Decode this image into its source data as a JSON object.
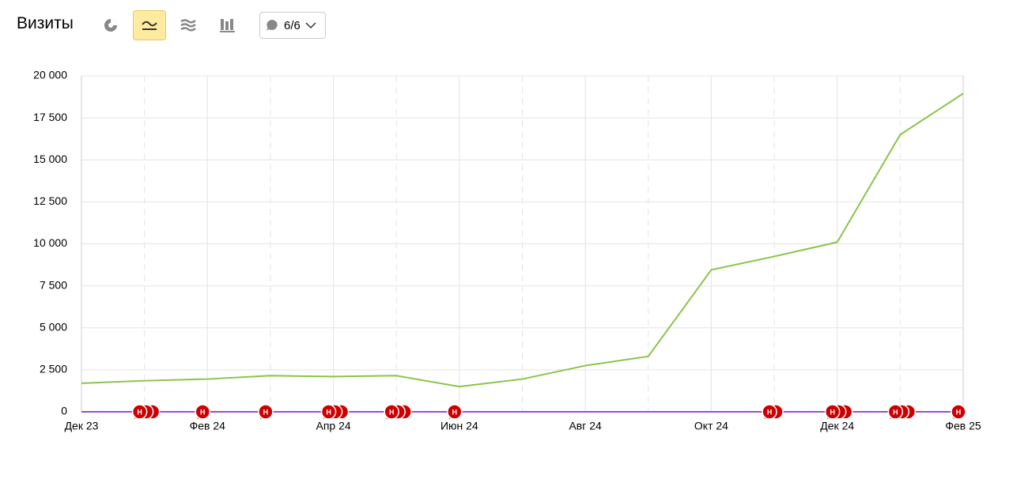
{
  "header": {
    "title": "Визиты",
    "comments": "6/6"
  },
  "chart_data": {
    "type": "line",
    "categories": [
      "Дек 23",
      null,
      "Фев 24",
      null,
      "Апр 24",
      null,
      "Июн 24",
      null,
      "Авг 24",
      null,
      "Окт 24",
      null,
      "Дек 24",
      null,
      "Фев 25"
    ],
    "series": [
      {
        "color": "#8bc34a",
        "values": [
          1700,
          1850,
          1950,
          2150,
          2100,
          2150,
          1500,
          1950,
          2750,
          3300,
          8450,
          9250,
          10100,
          16500,
          18950
        ]
      },
      {
        "color": "#9c4fc0",
        "values": [
          0,
          0,
          0,
          0,
          0,
          0,
          0,
          0,
          0,
          0,
          0,
          0,
          0,
          0,
          0
        ]
      }
    ],
    "ylim": [
      0,
      20000
    ],
    "yticks": [
      0,
      {
        "value": 2500,
        "label": "2 500"
      },
      {
        "value": 5000,
        "label": "5 000"
      },
      {
        "value": 7500,
        "label": "7 500"
      },
      {
        "value": 10000,
        "label": "10 000"
      },
      {
        "value": 12500,
        "label": "12 500"
      },
      {
        "value": 15000,
        "label": "15 000"
      },
      {
        "value": 17500,
        "label": "17 500"
      },
      {
        "value": 20000,
        "label": "20 000"
      }
    ],
    "grid": true,
    "annotations": {
      "label": "Н",
      "color": "#cc0000",
      "months": [
        1,
        2,
        3,
        4,
        5,
        6,
        11,
        12,
        13,
        14
      ],
      "counts": [
        3,
        1,
        1,
        3,
        3,
        1,
        2,
        3,
        3,
        1
      ]
    }
  }
}
